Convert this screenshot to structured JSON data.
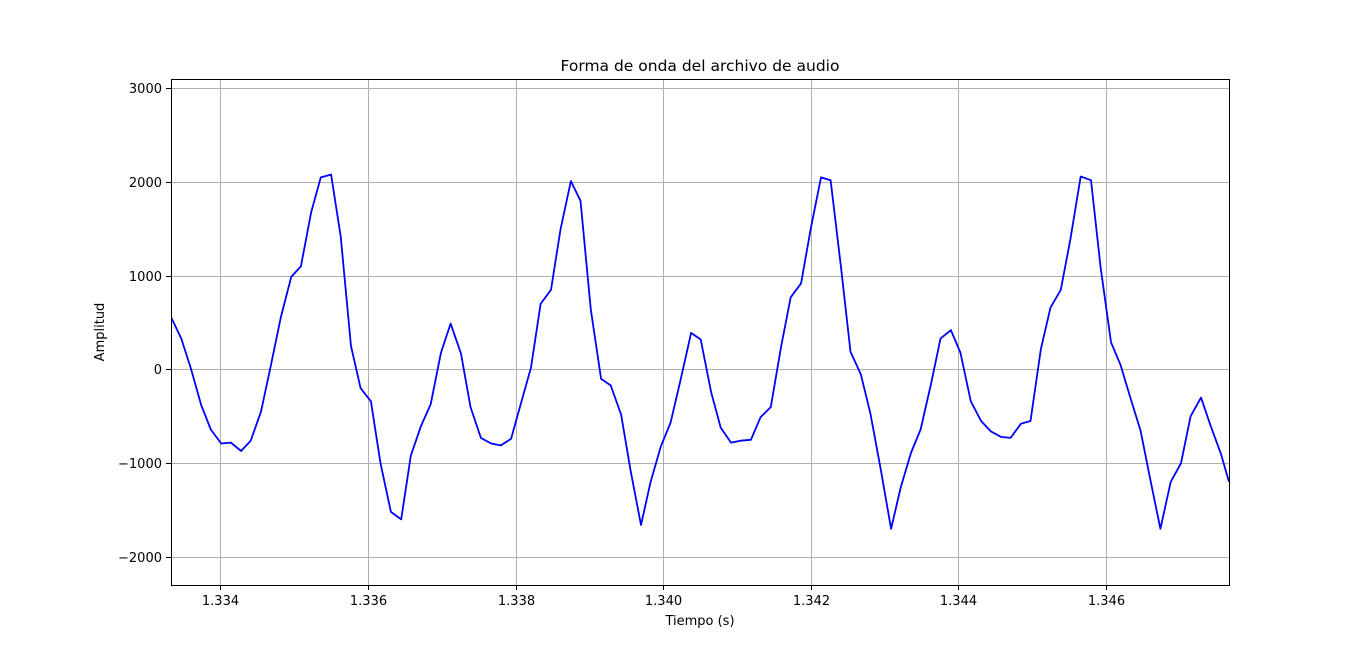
{
  "chart_data": {
    "type": "line",
    "title": "Forma de onda del archivo de audio",
    "xlabel": "Tiempo (s)",
    "ylabel": "Amplitud",
    "xlim": [
      1.33333,
      1.34767
    ],
    "ylim": [
      -2300,
      3100
    ],
    "grid": true,
    "x_ticks": [
      1.334,
      1.336,
      1.338,
      1.34,
      1.342,
      1.344,
      1.346
    ],
    "x_tick_labels": [
      "1.334",
      "1.336",
      "1.338",
      "1.340",
      "1.342",
      "1.344",
      "1.346"
    ],
    "y_ticks": [
      -2000,
      -1000,
      0,
      1000,
      2000,
      3000
    ],
    "y_tick_labels": [
      "−2000",
      "−1000",
      "0",
      "1000",
      "2000",
      "3000"
    ],
    "series": [
      {
        "color": "#0000ff",
        "x": [
          1.33333,
          1.33347,
          1.3336,
          1.33374,
          1.33387,
          1.33401,
          1.33414,
          1.33428,
          1.33441,
          1.33455,
          1.33468,
          1.33482,
          1.33496,
          1.33509,
          1.33523,
          1.33536,
          1.3355,
          1.33563,
          1.33577,
          1.3359,
          1.33604,
          1.33617,
          1.33631,
          1.33645,
          1.33658,
          1.33672,
          1.33685,
          1.33699,
          1.33712,
          1.33726,
          1.33739,
          1.33753,
          1.33767,
          1.3378,
          1.33794,
          1.33807,
          1.33821,
          1.33834,
          1.33848,
          1.33861,
          1.33875,
          1.33888,
          1.33902,
          1.33916,
          1.33929,
          1.33943,
          1.33956,
          1.3397,
          1.33983,
          1.33997,
          1.3401,
          1.34024,
          1.34038,
          1.34051,
          1.34065,
          1.34078,
          1.34092,
          1.34105,
          1.34119,
          1.34132,
          1.34146,
          1.3416,
          1.34173,
          1.34187,
          1.342,
          1.34214,
          1.34227,
          1.34241,
          1.34254,
          1.34268,
          1.34281,
          1.34295,
          1.34309,
          1.34322,
          1.34336,
          1.34349,
          1.34363,
          1.34376,
          1.3439,
          1.34403,
          1.34417,
          1.34431,
          1.34444,
          1.34458,
          1.34471,
          1.34485,
          1.34498,
          1.34512,
          1.34525,
          1.34539,
          1.34552,
          1.34566,
          1.3458,
          1.34593,
          1.34607,
          1.3462,
          1.34634,
          1.34647,
          1.34661,
          1.34674,
          1.34688,
          1.34702,
          1.34715,
          1.34729,
          1.34742,
          1.34756,
          1.34767
        ],
        "y": [
          560,
          330,
          10,
          -380,
          -640,
          -790,
          -780,
          -870,
          -760,
          -450,
          30,
          560,
          990,
          1100,
          1680,
          2050,
          2080,
          1420,
          250,
          -200,
          -340,
          -1000,
          -1520,
          -1600,
          -920,
          -600,
          -370,
          180,
          490,
          170,
          -400,
          -730,
          -790,
          -810,
          -740,
          -370,
          20,
          700,
          850,
          1500,
          2010,
          1800,
          640,
          -100,
          -170,
          -480,
          -1080,
          -1660,
          -1200,
          -820,
          -570,
          -100,
          390,
          320,
          -240,
          -620,
          -780,
          -760,
          -750,
          -510,
          -400,
          250,
          770,
          920,
          1500,
          2050,
          2020,
          1100,
          190,
          -50,
          -470,
          -1070,
          -1700,
          -1260,
          -890,
          -640,
          -160,
          330,
          420,
          180,
          -340,
          -550,
          -660,
          -720,
          -730,
          -580,
          -550,
          220,
          660,
          850,
          1390,
          2060,
          2020,
          1090,
          290,
          50,
          -320,
          -650,
          -1200,
          -1700,
          -1200,
          -1000,
          -500,
          -300,
          -600,
          -900,
          -1200
        ]
      }
    ]
  }
}
